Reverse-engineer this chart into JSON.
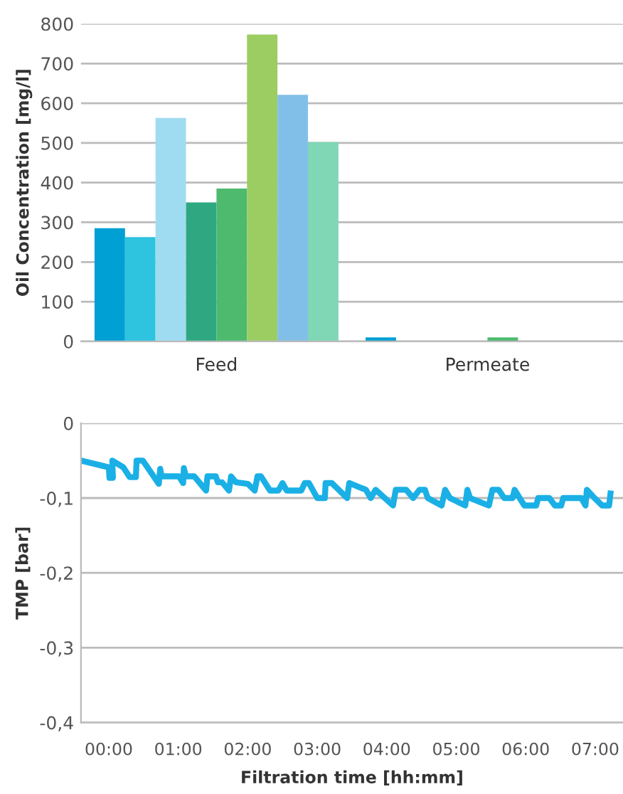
{
  "chart_data": [
    {
      "type": "bar",
      "ylabel": "Oil Concentration [mg/l]",
      "categories": [
        "Feed",
        "Permeate"
      ],
      "ylim": [
        0,
        800
      ],
      "yticks": [
        0,
        100,
        200,
        300,
        400,
        500,
        600,
        700,
        800
      ],
      "grid": "y",
      "series": [
        {
          "color": "#009fd4",
          "values": [
            285,
            10
          ]
        },
        {
          "color": "#2ec3df",
          "values": [
            263,
            null
          ]
        },
        {
          "color": "#a0dcf1",
          "values": [
            563,
            null
          ]
        },
        {
          "color": "#2fa882",
          "values": [
            350,
            null
          ]
        },
        {
          "color": "#4dba6e",
          "values": [
            385,
            10
          ]
        },
        {
          "color": "#9ccd63",
          "values": [
            773,
            null
          ]
        },
        {
          "color": "#82bfe8",
          "values": [
            621,
            null
          ]
        },
        {
          "color": "#7fd7b5",
          "values": [
            502,
            null
          ]
        }
      ]
    },
    {
      "type": "line",
      "xlabel": "Filtration time [hh:mm]",
      "ylabel": "TMP [bar]",
      "xlim": [
        -0.4,
        7.4
      ],
      "ylim": [
        -0.4,
        0
      ],
      "xticks": [
        {
          "value": 0,
          "label": "00:00"
        },
        {
          "value": 1,
          "label": "01:00"
        },
        {
          "value": 2,
          "label": "02:00"
        },
        {
          "value": 3,
          "label": "03:00"
        },
        {
          "value": 4,
          "label": "04:00"
        },
        {
          "value": 5,
          "label": "05:00"
        },
        {
          "value": 6,
          "label": "06:00"
        },
        {
          "value": 7,
          "label": "07:00"
        }
      ],
      "yticks": [
        {
          "value": -0.4,
          "label": "-0,4"
        },
        {
          "value": -0.3,
          "label": "-0,3"
        },
        {
          "value": -0.2,
          "label": "-0,2"
        },
        {
          "value": -0.1,
          "label": "-0,1"
        },
        {
          "value": 0,
          "label": "0"
        }
      ],
      "grid": "y",
      "marker": "none",
      "line_style": "solid",
      "series": [
        {
          "color": "#1ab0e6",
          "x": [
            -0.4,
            0,
            0.01,
            0.06,
            0.05,
            0.21,
            0.3,
            0.39,
            0.4,
            0.49,
            0.72,
            0.74,
            0.76,
            1.01,
            1.07,
            1.08,
            1.11,
            1.23,
            1.4,
            1.42,
            1.54,
            1.57,
            1.63,
            1.73,
            1.76,
            1.83,
            2.0,
            2.1,
            2.14,
            2.19,
            2.32,
            2.44,
            2.5,
            2.56,
            2.77,
            2.82,
            2.88,
            3.0,
            3.11,
            3.12,
            3.21,
            3.43,
            3.46,
            3.7,
            3.77,
            3.84,
            4.09,
            4.13,
            4.28,
            4.38,
            4.47,
            4.55,
            4.59,
            4.79,
            4.84,
            4.91,
            5.13,
            5.16,
            5.2,
            5.47,
            5.52,
            5.61,
            5.69,
            5.81,
            5.84,
            5.98,
            6.15,
            6.18,
            6.34,
            6.42,
            6.51,
            6.54,
            6.8,
            6.86,
            6.88,
            6.99,
            7.1,
            7.2,
            7.22
          ],
          "values": [
            -0.05,
            -0.059,
            -0.073,
            -0.073,
            -0.05,
            -0.059,
            -0.072,
            -0.072,
            -0.05,
            -0.05,
            -0.081,
            -0.061,
            -0.071,
            -0.071,
            -0.08,
            -0.06,
            -0.071,
            -0.071,
            -0.09,
            -0.071,
            -0.071,
            -0.079,
            -0.079,
            -0.09,
            -0.071,
            -0.079,
            -0.081,
            -0.09,
            -0.071,
            -0.071,
            -0.09,
            -0.09,
            -0.08,
            -0.09,
            -0.09,
            -0.08,
            -0.08,
            -0.1,
            -0.1,
            -0.08,
            -0.08,
            -0.1,
            -0.08,
            -0.089,
            -0.1,
            -0.089,
            -0.11,
            -0.089,
            -0.089,
            -0.1,
            -0.089,
            -0.089,
            -0.1,
            -0.11,
            -0.089,
            -0.1,
            -0.11,
            -0.089,
            -0.1,
            -0.11,
            -0.089,
            -0.089,
            -0.1,
            -0.1,
            -0.089,
            -0.11,
            -0.11,
            -0.1,
            -0.1,
            -0.11,
            -0.11,
            -0.1,
            -0.1,
            -0.11,
            -0.089,
            -0.1,
            -0.11,
            -0.11,
            -0.094
          ]
        }
      ]
    }
  ]
}
